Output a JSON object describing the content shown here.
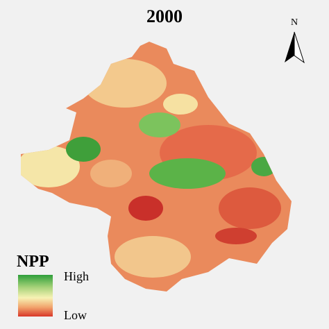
{
  "title": "2000",
  "north_arrow": {
    "label": "N"
  },
  "legend": {
    "title": "NPP",
    "high": "High",
    "low": "Low"
  }
}
